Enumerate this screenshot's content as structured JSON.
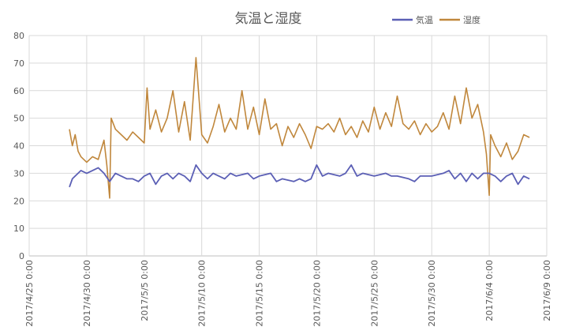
{
  "chart_data": {
    "type": "line",
    "title": "気温と湿度",
    "legend_position": "top-right",
    "grid": true,
    "xlabel": "",
    "ylabel": "",
    "ylim": [
      0,
      80
    ],
    "y_ticks": [
      "0",
      "10",
      "20",
      "30",
      "40",
      "50",
      "60",
      "70",
      "80"
    ],
    "x_tick_labels": [
      "2017/4/25 0:00",
      "2017/4/30 0:00",
      "2017/5/5 0:00",
      "2017/5/10 0:00",
      "2017/5/15 0:00",
      "2017/5/20 0:00",
      "2017/5/25 0:00",
      "2017/5/30 0:00",
      "2017/6/4 0:00",
      "2017/6/9 0:00"
    ],
    "x_range": [
      "2017-04-25",
      "2017-06-09"
    ],
    "series": [
      {
        "name": "気温",
        "color": "#5b5fb5",
        "points": [
          [
            "2017-04-28 12:00",
            25
          ],
          [
            "2017-04-28 18:00",
            28
          ],
          [
            "2017-04-29 00:00",
            29
          ],
          [
            "2017-04-29 12:00",
            31
          ],
          [
            "2017-04-30 00:00",
            30
          ],
          [
            "2017-04-30 12:00",
            31
          ],
          [
            "2017-05-01 00:00",
            32
          ],
          [
            "2017-05-01 12:00",
            30
          ],
          [
            "2017-05-02 00:00",
            27
          ],
          [
            "2017-05-02 12:00",
            30
          ],
          [
            "2017-05-03 00:00",
            29
          ],
          [
            "2017-05-03 12:00",
            28
          ],
          [
            "2017-05-04 00:00",
            28
          ],
          [
            "2017-05-04 12:00",
            27
          ],
          [
            "2017-05-05 00:00",
            29
          ],
          [
            "2017-05-05 12:00",
            30
          ],
          [
            "2017-05-06 00:00",
            26
          ],
          [
            "2017-05-06 12:00",
            29
          ],
          [
            "2017-05-07 00:00",
            30
          ],
          [
            "2017-05-07 12:00",
            28
          ],
          [
            "2017-05-08 00:00",
            30
          ],
          [
            "2017-05-08 12:00",
            29
          ],
          [
            "2017-05-09 00:00",
            27
          ],
          [
            "2017-05-09 12:00",
            33
          ],
          [
            "2017-05-10 00:00",
            30
          ],
          [
            "2017-05-10 12:00",
            28
          ],
          [
            "2017-05-11 00:00",
            30
          ],
          [
            "2017-05-12 00:00",
            28
          ],
          [
            "2017-05-12 12:00",
            30
          ],
          [
            "2017-05-13 00:00",
            29
          ],
          [
            "2017-05-14 00:00",
            30
          ],
          [
            "2017-05-14 12:00",
            28
          ],
          [
            "2017-05-15 00:00",
            29
          ],
          [
            "2017-05-16 00:00",
            30
          ],
          [
            "2017-05-16 12:00",
            27
          ],
          [
            "2017-05-17 00:00",
            28
          ],
          [
            "2017-05-18 00:00",
            27
          ],
          [
            "2017-05-18 12:00",
            28
          ],
          [
            "2017-05-19 00:00",
            27
          ],
          [
            "2017-05-19 12:00",
            28
          ],
          [
            "2017-05-20 00:00",
            33
          ],
          [
            "2017-05-20 12:00",
            29
          ],
          [
            "2017-05-21 00:00",
            30
          ],
          [
            "2017-05-22 00:00",
            29
          ],
          [
            "2017-05-22 12:00",
            30
          ],
          [
            "2017-05-23 00:00",
            33
          ],
          [
            "2017-05-23 12:00",
            29
          ],
          [
            "2017-05-24 00:00",
            30
          ],
          [
            "2017-05-25 00:00",
            29
          ],
          [
            "2017-05-26 00:00",
            30
          ],
          [
            "2017-05-26 12:00",
            29
          ],
          [
            "2017-05-27 00:00",
            29
          ],
          [
            "2017-05-28 00:00",
            28
          ],
          [
            "2017-05-28 12:00",
            27
          ],
          [
            "2017-05-29 00:00",
            29
          ],
          [
            "2017-05-30 00:00",
            29
          ],
          [
            "2017-05-31 00:00",
            30
          ],
          [
            "2017-05-31 12:00",
            31
          ],
          [
            "2017-06-01 00:00",
            28
          ],
          [
            "2017-06-01 12:00",
            30
          ],
          [
            "2017-06-02 00:00",
            27
          ],
          [
            "2017-06-02 12:00",
            30
          ],
          [
            "2017-06-03 00:00",
            28
          ],
          [
            "2017-06-03 12:00",
            30
          ],
          [
            "2017-06-04 00:00",
            30
          ],
          [
            "2017-06-04 12:00",
            29
          ],
          [
            "2017-06-05 00:00",
            27
          ],
          [
            "2017-06-05 12:00",
            29
          ],
          [
            "2017-06-06 00:00",
            30
          ],
          [
            "2017-06-06 12:00",
            26
          ],
          [
            "2017-06-07 00:00",
            29
          ],
          [
            "2017-06-07 12:00",
            28
          ]
        ]
      },
      {
        "name": "湿度",
        "color": "#c0873c",
        "points": [
          [
            "2017-04-28 12:00",
            46
          ],
          [
            "2017-04-28 18:00",
            40
          ],
          [
            "2017-04-29 00:00",
            44
          ],
          [
            "2017-04-29 06:00",
            38
          ],
          [
            "2017-04-29 12:00",
            36
          ],
          [
            "2017-04-30 00:00",
            34
          ],
          [
            "2017-04-30 12:00",
            36
          ],
          [
            "2017-05-01 00:00",
            35
          ],
          [
            "2017-05-01 12:00",
            42
          ],
          [
            "2017-05-01 18:00",
            33
          ],
          [
            "2017-05-02 00:00",
            21
          ],
          [
            "2017-05-02 03:00",
            50
          ],
          [
            "2017-05-02 12:00",
            46
          ],
          [
            "2017-05-03 00:00",
            44
          ],
          [
            "2017-05-03 12:00",
            42
          ],
          [
            "2017-05-04 00:00",
            45
          ],
          [
            "2017-05-04 12:00",
            43
          ],
          [
            "2017-05-05 00:00",
            41
          ],
          [
            "2017-05-05 06:00",
            61
          ],
          [
            "2017-05-05 12:00",
            46
          ],
          [
            "2017-05-06 00:00",
            53
          ],
          [
            "2017-05-06 12:00",
            45
          ],
          [
            "2017-05-07 00:00",
            50
          ],
          [
            "2017-05-07 12:00",
            60
          ],
          [
            "2017-05-08 00:00",
            45
          ],
          [
            "2017-05-08 12:00",
            56
          ],
          [
            "2017-05-09 00:00",
            42
          ],
          [
            "2017-05-09 12:00",
            72
          ],
          [
            "2017-05-10 00:00",
            44
          ],
          [
            "2017-05-10 12:00",
            41
          ],
          [
            "2017-05-11 00:00",
            47
          ],
          [
            "2017-05-11 12:00",
            55
          ],
          [
            "2017-05-12 00:00",
            45
          ],
          [
            "2017-05-12 12:00",
            50
          ],
          [
            "2017-05-13 00:00",
            46
          ],
          [
            "2017-05-13 12:00",
            60
          ],
          [
            "2017-05-14 00:00",
            46
          ],
          [
            "2017-05-14 12:00",
            54
          ],
          [
            "2017-05-15 00:00",
            44
          ],
          [
            "2017-05-15 12:00",
            57
          ],
          [
            "2017-05-16 00:00",
            46
          ],
          [
            "2017-05-16 12:00",
            48
          ],
          [
            "2017-05-17 00:00",
            40
          ],
          [
            "2017-05-17 12:00",
            47
          ],
          [
            "2017-05-18 00:00",
            43
          ],
          [
            "2017-05-18 12:00",
            48
          ],
          [
            "2017-05-19 00:00",
            44
          ],
          [
            "2017-05-19 12:00",
            39
          ],
          [
            "2017-05-20 00:00",
            47
          ],
          [
            "2017-05-20 12:00",
            46
          ],
          [
            "2017-05-21 00:00",
            48
          ],
          [
            "2017-05-21 12:00",
            45
          ],
          [
            "2017-05-22 00:00",
            50
          ],
          [
            "2017-05-22 12:00",
            44
          ],
          [
            "2017-05-23 00:00",
            47
          ],
          [
            "2017-05-23 12:00",
            43
          ],
          [
            "2017-05-24 00:00",
            49
          ],
          [
            "2017-05-24 12:00",
            45
          ],
          [
            "2017-05-25 00:00",
            54
          ],
          [
            "2017-05-25 12:00",
            46
          ],
          [
            "2017-05-26 00:00",
            52
          ],
          [
            "2017-05-26 12:00",
            47
          ],
          [
            "2017-05-27 00:00",
            58
          ],
          [
            "2017-05-27 12:00",
            48
          ],
          [
            "2017-05-28 00:00",
            46
          ],
          [
            "2017-05-28 12:00",
            49
          ],
          [
            "2017-05-29 00:00",
            44
          ],
          [
            "2017-05-29 12:00",
            48
          ],
          [
            "2017-05-30 00:00",
            45
          ],
          [
            "2017-05-30 12:00",
            47
          ],
          [
            "2017-05-31 00:00",
            52
          ],
          [
            "2017-05-31 12:00",
            46
          ],
          [
            "2017-06-01 00:00",
            58
          ],
          [
            "2017-06-01 12:00",
            48
          ],
          [
            "2017-06-02 00:00",
            61
          ],
          [
            "2017-06-02 12:00",
            50
          ],
          [
            "2017-06-03 00:00",
            55
          ],
          [
            "2017-06-03 12:00",
            45
          ],
          [
            "2017-06-03 18:00",
            37
          ],
          [
            "2017-06-04 00:00",
            22
          ],
          [
            "2017-06-04 03:00",
            44
          ],
          [
            "2017-06-04 12:00",
            40
          ],
          [
            "2017-06-05 00:00",
            36
          ],
          [
            "2017-06-05 12:00",
            41
          ],
          [
            "2017-06-06 00:00",
            35
          ],
          [
            "2017-06-06 12:00",
            38
          ],
          [
            "2017-06-07 00:00",
            44
          ],
          [
            "2017-06-07 12:00",
            43
          ]
        ]
      }
    ]
  }
}
